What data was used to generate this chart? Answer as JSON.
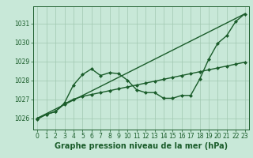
{
  "xlabel": "Graphe pression niveau de la mer (hPa)",
  "xlim": [
    -0.5,
    23.5
  ],
  "ylim": [
    1025.4,
    1031.9
  ],
  "yticks": [
    1026,
    1027,
    1028,
    1029,
    1030,
    1031
  ],
  "xticks": [
    0,
    1,
    2,
    3,
    4,
    5,
    6,
    7,
    8,
    9,
    10,
    11,
    12,
    13,
    14,
    15,
    16,
    17,
    18,
    19,
    20,
    21,
    22,
    23
  ],
  "bg_color": "#c8e8d8",
  "grid_color": "#a0c8b0",
  "line_color": "#1a5c2a",
  "line1_x": [
    0,
    1,
    2,
    3,
    4,
    5,
    6,
    7,
    8,
    9,
    10,
    11,
    12,
    13,
    14,
    15,
    16,
    17,
    18,
    19,
    20,
    21,
    22,
    23
  ],
  "line1_y": [
    1025.95,
    1026.2,
    1026.35,
    1026.8,
    1027.75,
    1028.3,
    1028.6,
    1028.25,
    1028.4,
    1028.35,
    1028.0,
    1027.5,
    1027.35,
    1027.35,
    1027.05,
    1027.05,
    1027.2,
    1027.2,
    1028.05,
    1029.1,
    1029.95,
    1030.35,
    1031.1,
    1031.5
  ],
  "line2_x": [
    0,
    1,
    2,
    3,
    4,
    5,
    6,
    7,
    8,
    9,
    10,
    11,
    12,
    13,
    14,
    15,
    16,
    17,
    18,
    19,
    20,
    21,
    22,
    23
  ],
  "line2_y": [
    1026.0,
    1026.2,
    1026.35,
    1026.75,
    1027.0,
    1027.15,
    1027.25,
    1027.35,
    1027.45,
    1027.55,
    1027.65,
    1027.75,
    1027.85,
    1027.95,
    1028.05,
    1028.15,
    1028.25,
    1028.35,
    1028.45,
    1028.55,
    1028.65,
    1028.75,
    1028.85,
    1028.95
  ],
  "line3_x": [
    0,
    23
  ],
  "line3_y": [
    1026.0,
    1031.5
  ],
  "markersize": 2.5,
  "linewidth": 1.0,
  "tick_fontsize": 5.5,
  "label_fontsize": 7
}
